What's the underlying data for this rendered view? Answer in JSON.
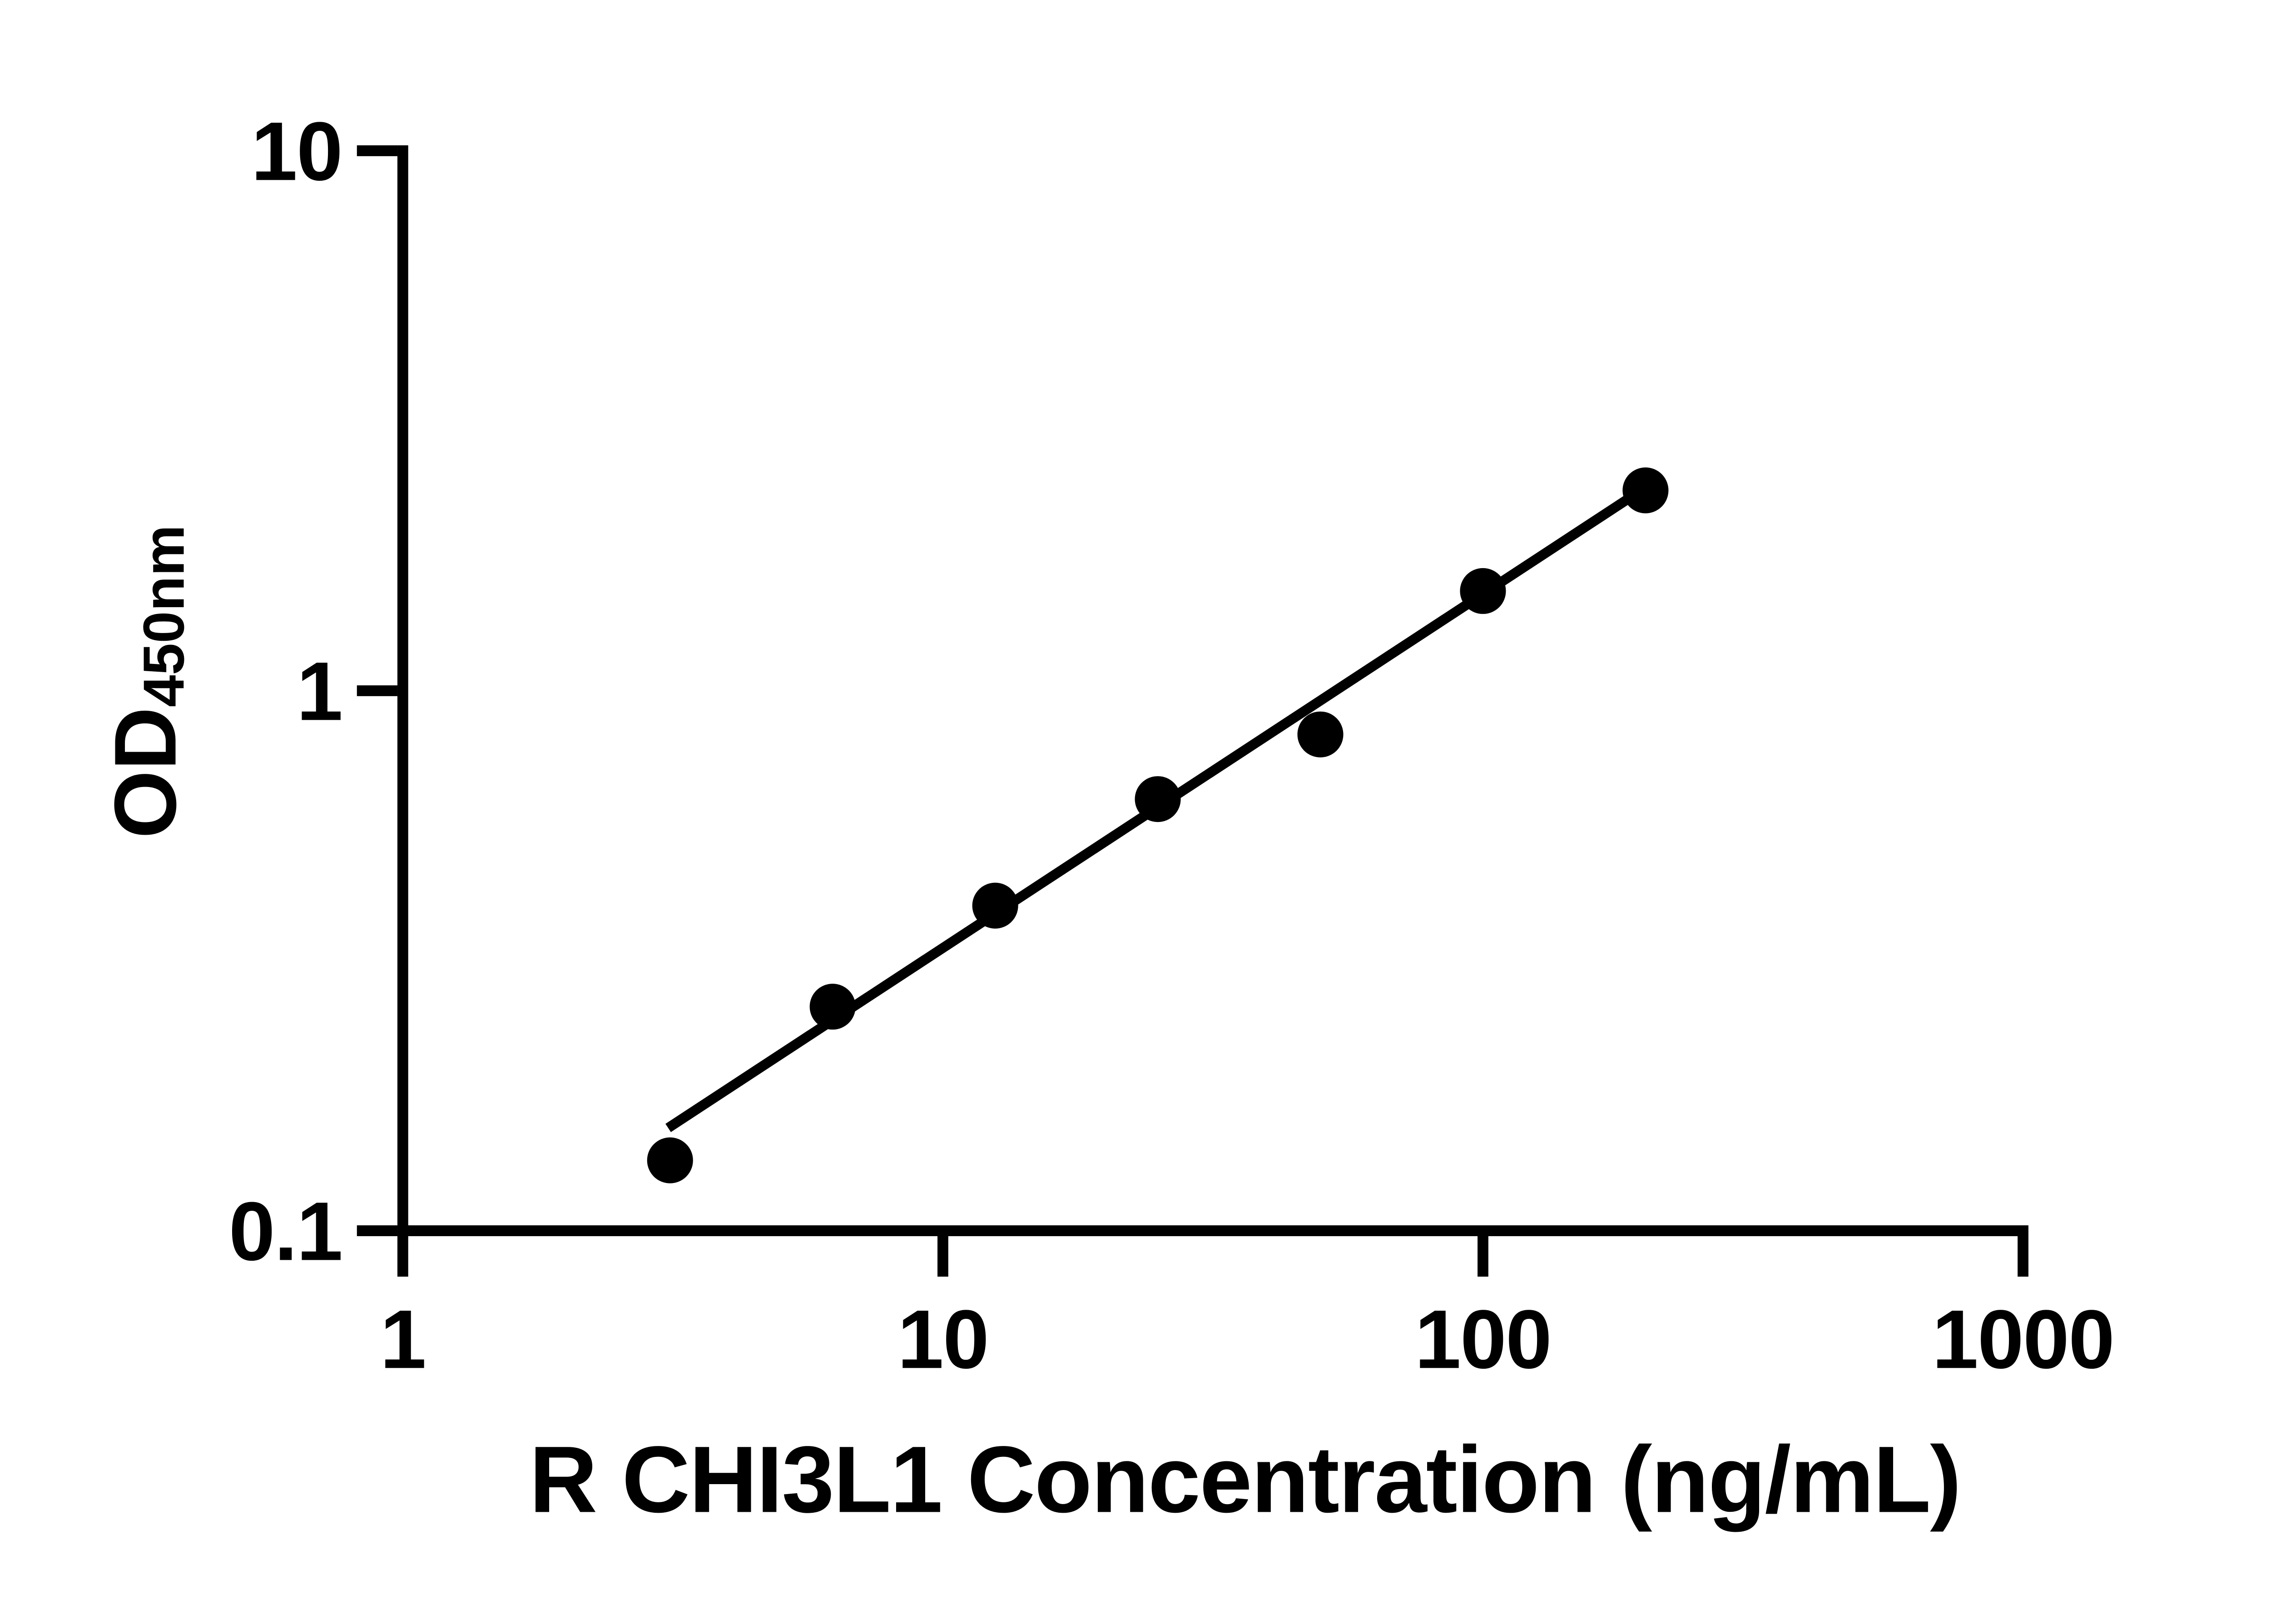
{
  "figure": {
    "background": "#ffffff",
    "ink": "#000000"
  },
  "chart_data": {
    "type": "scatter",
    "title": "",
    "grid": false,
    "legend": false,
    "x_axis": {
      "label": "R CHI3L1 Concentration (ng/mL)",
      "scale": "log10",
      "range": [
        1,
        1000
      ],
      "ticks": [
        {
          "v": 1,
          "label": "1"
        },
        {
          "v": 10,
          "label": "10"
        },
        {
          "v": 100,
          "label": "100"
        },
        {
          "v": 1000,
          "label": "1000"
        }
      ]
    },
    "y_axis": {
      "label_main": "OD",
      "label_sub": "450nm",
      "scale": "log10",
      "range": [
        0.1,
        10
      ],
      "ticks": [
        {
          "v": 0.1,
          "label": "0.1"
        },
        {
          "v": 1,
          "label": "1"
        },
        {
          "v": 10,
          "label": "10"
        }
      ]
    },
    "series": [
      {
        "name": "standard-curve-points",
        "marker": "filled-circle",
        "color": "#000000",
        "points": [
          {
            "x": 3.125,
            "y": 0.135
          },
          {
            "x": 6.25,
            "y": 0.26
          },
          {
            "x": 12.5,
            "y": 0.4
          },
          {
            "x": 25,
            "y": 0.63
          },
          {
            "x": 50,
            "y": 0.83
          },
          {
            "x": 100,
            "y": 1.53
          },
          {
            "x": 200,
            "y": 2.35
          }
        ]
      }
    ],
    "trendline": {
      "color": "#000000",
      "x1": 3.1,
      "y1": 0.155,
      "x2": 195,
      "y2": 2.34
    }
  }
}
